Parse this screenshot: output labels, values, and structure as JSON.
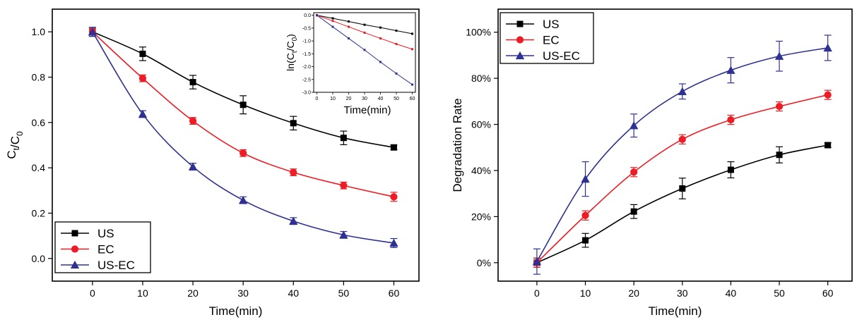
{
  "chart_data": [
    {
      "type": "line",
      "panel": "left",
      "xlabel": "Time(min)",
      "ylabel_main": "C",
      "ylabel_sub1": "t",
      "ylabel_mid": "/C",
      "ylabel_sub2": "0",
      "xlim": [
        -8,
        65
      ],
      "ylim": [
        -0.1,
        1.1
      ],
      "xticks": [
        0,
        10,
        20,
        30,
        40,
        50,
        60
      ],
      "yticks": [
        0.0,
        0.2,
        0.4,
        0.6,
        0.8,
        1.0
      ],
      "ytick_labels": [
        "0.0",
        "0.2",
        "0.4",
        "0.6",
        "0.8",
        "1.0"
      ],
      "x": [
        0,
        10,
        20,
        30,
        40,
        50,
        60
      ],
      "legend_position": "bottom-left",
      "series": [
        {
          "name": "US",
          "color": "#000000",
          "marker": "square",
          "values": [
            1.0,
            0.903,
            0.778,
            0.678,
            0.597,
            0.532,
            0.49
          ],
          "errors": [
            0.02,
            0.03,
            0.03,
            0.04,
            0.03,
            0.03,
            0.01
          ]
        },
        {
          "name": "EC",
          "color": "#ee1c24",
          "marker": "circle",
          "values": [
            1.0,
            0.795,
            0.607,
            0.465,
            0.38,
            0.322,
            0.272
          ],
          "errors": [
            0.015,
            0.015,
            0.015,
            0.015,
            0.015,
            0.015,
            0.02
          ]
        },
        {
          "name": "US-EC",
          "color": "#2e3192",
          "marker": "triangle",
          "values": [
            1.0,
            0.637,
            0.405,
            0.257,
            0.165,
            0.104,
            0.068
          ],
          "errors": [
            0.02,
            0.015,
            0.015,
            0.015,
            0.015,
            0.015,
            0.02
          ]
        }
      ],
      "inset": {
        "xlabel": "Time(min)",
        "ylabel": "ln(C/C)",
        "ylabel_parts": [
          "ln(C",
          "t",
          "/C",
          "0",
          ")"
        ],
        "xlim": [
          -2,
          62
        ],
        "ylim": [
          -3.0,
          0.1
        ],
        "xticks": [
          0,
          10,
          20,
          30,
          40,
          50,
          60
        ],
        "yticks": [
          0.0,
          -0.5,
          -1.0,
          -1.5,
          -2.0,
          -2.5,
          -3.0
        ],
        "ytick_labels": [
          "0.0",
          "-0.5",
          "-1.0",
          "-1.5",
          "-2.0",
          "-2.5",
          "-3.0"
        ],
        "x": [
          0,
          10,
          20,
          30,
          40,
          50,
          60
        ],
        "series": [
          {
            "name": "US",
            "color": "#000000",
            "values": [
              0.0,
              -0.118,
              -0.243,
              -0.37,
              -0.48,
              -0.6,
              -0.72
            ]
          },
          {
            "name": "EC",
            "color": "#ee1c24",
            "values": [
              0.0,
              -0.22,
              -0.45,
              -0.68,
              -0.9,
              -1.12,
              -1.32
            ]
          },
          {
            "name": "US-EC",
            "color": "#2e3192",
            "values": [
              0.0,
              -0.45,
              -0.9,
              -1.35,
              -1.82,
              -2.27,
              -2.7
            ]
          }
        ]
      }
    },
    {
      "type": "line",
      "panel": "right",
      "xlabel": "Time(min)",
      "ylabel": "Degradation Rate",
      "xlim": [
        -8,
        65
      ],
      "ylim": [
        -0.08,
        1.1
      ],
      "xticks": [
        0,
        10,
        20,
        30,
        40,
        50,
        60
      ],
      "yticks": [
        0.0,
        0.2,
        0.4,
        0.6,
        0.8,
        1.0
      ],
      "ytick_labels": [
        "0%",
        "20%",
        "40%",
        "60%",
        "80%",
        "100%"
      ],
      "x": [
        0,
        10,
        20,
        30,
        40,
        50,
        60
      ],
      "legend_position": "top-left",
      "series": [
        {
          "name": "US",
          "color": "#000000",
          "marker": "square",
          "values": [
            0.0,
            0.097,
            0.222,
            0.322,
            0.403,
            0.468,
            0.51
          ],
          "errors": [
            0.02,
            0.03,
            0.03,
            0.045,
            0.035,
            0.035,
            0.01
          ]
        },
        {
          "name": "EC",
          "color": "#ee1c24",
          "marker": "circle",
          "values": [
            0.0,
            0.205,
            0.393,
            0.535,
            0.62,
            0.678,
            0.728
          ],
          "errors": [
            0.02,
            0.02,
            0.02,
            0.02,
            0.02,
            0.02,
            0.02
          ]
        },
        {
          "name": "US-EC",
          "color": "#2e3192",
          "marker": "triangle",
          "values": [
            0.005,
            0.363,
            0.595,
            0.743,
            0.835,
            0.896,
            0.932
          ],
          "errors": [
            0.055,
            0.075,
            0.05,
            0.033,
            0.055,
            0.065,
            0.055
          ]
        }
      ]
    }
  ]
}
